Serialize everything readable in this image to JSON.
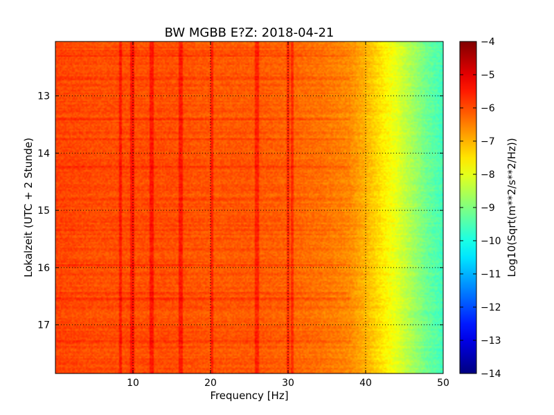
{
  "chart_data": {
    "type": "heatmap",
    "title": "BW MGBB E?Z: 2018-04-21",
    "xlabel": "Frequency [Hz]",
    "ylabel": "Lokalzeit (UTC + 2 Stunde)",
    "xlim": [
      0,
      50
    ],
    "ylim": [
      12.05,
      17.85
    ],
    "y_inverted": true,
    "xticks": [
      10,
      20,
      30,
      40,
      50
    ],
    "xtick_labels": [
      "10",
      "20",
      "30",
      "40",
      "50"
    ],
    "yticks": [
      13,
      14,
      15,
      16,
      17
    ],
    "ytick_labels": [
      "13",
      "14",
      "15",
      "16",
      "17"
    ],
    "grid": true,
    "grid_style": "dotted",
    "colormap": "jet",
    "colorbar": {
      "label": "Log10(Sqrt(m**2/s**2/Hz))",
      "vmin": -14,
      "vmax": -4,
      "ticks": [
        -4,
        -5,
        -6,
        -7,
        -8,
        -9,
        -10,
        -11,
        -12,
        -13,
        -14
      ],
      "tick_labels": [
        "−4",
        "−5",
        "−6",
        "−7",
        "−8",
        "−9",
        "−10",
        "−11",
        "−12",
        "−13",
        "−14"
      ]
    },
    "spectral_profile": {
      "frequency_hz": [
        0,
        5,
        10,
        15,
        20,
        25,
        30,
        35,
        38,
        40,
        42,
        44,
        46,
        48,
        50
      ],
      "log10_amplitude": [
        -5.9,
        -6.0,
        -6.0,
        -6.0,
        -6.1,
        -6.1,
        -6.2,
        -6.4,
        -6.6,
        -7.0,
        -7.5,
        -8.0,
        -8.6,
        -9.2,
        -9.6
      ]
    },
    "spectral_lines_hz": [
      8.4,
      9.9,
      12.4,
      16.2,
      20.2,
      26.0,
      30.0,
      30.5
    ],
    "time_bands_hours": [
      12.3,
      12.7,
      13.4,
      13.75,
      14.25,
      14.8,
      15.35,
      15.95,
      16.45,
      16.55,
      17.3,
      17.6
    ]
  }
}
